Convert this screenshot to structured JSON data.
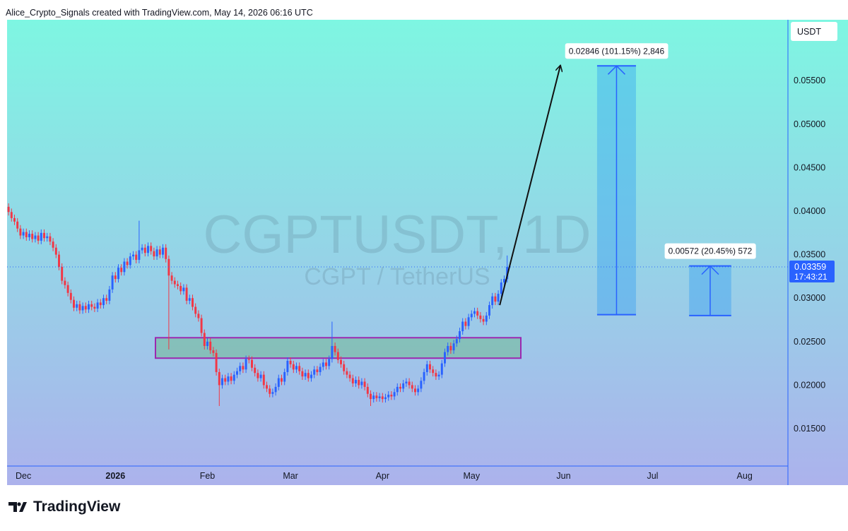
{
  "header": "Alice_Crypto_Signals created with TradingView.com, May 14, 2026 06:16 UTC",
  "footer": "TradingView",
  "chart_data": {
    "type": "candlestick",
    "title": "CGPTUSDT, 1D",
    "subtitle": "CGPT / TetherUS",
    "y_axis_label": "USDT",
    "up_color": "#2962ff",
    "down_color": "#f23645",
    "grid": false,
    "xlim": [
      -0.5,
      262.6
    ],
    "xticks": [
      {
        "value": 5,
        "label": "Dec"
      },
      {
        "value": 36,
        "label": "2026"
      },
      {
        "value": 67,
        "label": "Feb"
      },
      {
        "value": 95,
        "label": "Mar"
      },
      {
        "value": 126,
        "label": "Apr"
      },
      {
        "value": 156,
        "label": "May"
      },
      {
        "value": 187,
        "label": "Jun"
      },
      {
        "value": 217,
        "label": "Jul"
      },
      {
        "value": 248,
        "label": "Aug"
      }
    ],
    "ylim": [
      0.0107,
      0.062
    ],
    "yticks": [
      {
        "value": 0.015,
        "label": "0.01500"
      },
      {
        "value": 0.02,
        "label": "0.02000"
      },
      {
        "value": 0.025,
        "label": "0.02500"
      },
      {
        "value": 0.03,
        "label": "0.03000"
      },
      {
        "value": 0.035,
        "label": "0.03500"
      },
      {
        "value": 0.04,
        "label": "0.04000"
      },
      {
        "value": 0.045,
        "label": "0.04500"
      },
      {
        "value": 0.05,
        "label": "0.05000"
      },
      {
        "value": 0.055,
        "label": "0.05500"
      }
    ],
    "open": [
      0.0405,
      0.0399,
      0.0392,
      0.0388,
      0.038,
      0.0372,
      0.0376,
      0.037,
      0.0374,
      0.0368,
      0.0372,
      0.0366,
      0.0375,
      0.0369,
      0.0371,
      0.0365,
      0.0358,
      0.035,
      0.0336,
      0.032,
      0.0315,
      0.0306,
      0.0298,
      0.0289,
      0.0293,
      0.0286,
      0.0291,
      0.0287,
      0.0293,
      0.029,
      0.0288,
      0.0295,
      0.0292,
      0.03,
      0.0297,
      0.031,
      0.0326,
      0.0322,
      0.0335,
      0.033,
      0.0342,
      0.0338,
      0.0348,
      0.035,
      0.0344,
      0.0355,
      0.0358,
      0.0352,
      0.036,
      0.0354,
      0.0348,
      0.0356,
      0.035,
      0.0358,
      0.0345,
      0.0326,
      0.032,
      0.0316,
      0.0314,
      0.0308,
      0.0312,
      0.0297,
      0.03,
      0.029,
      0.0282,
      0.0277,
      0.026,
      0.0245,
      0.025,
      0.024,
      0.0237,
      0.0215,
      0.02,
      0.0208,
      0.0204,
      0.021,
      0.0205,
      0.0212,
      0.0216,
      0.0222,
      0.0218,
      0.023,
      0.0229,
      0.022,
      0.0214,
      0.0208,
      0.0212,
      0.02,
      0.0196,
      0.019,
      0.0192,
      0.0198,
      0.0208,
      0.0204,
      0.0215,
      0.0228,
      0.0224,
      0.0218,
      0.0222,
      0.0216,
      0.021,
      0.0214,
      0.0208,
      0.0212,
      0.0218,
      0.0215,
      0.0221,
      0.0226,
      0.0222,
      0.023,
      0.0245,
      0.0238,
      0.0229,
      0.0224,
      0.0216,
      0.0212,
      0.0208,
      0.0202,
      0.0206,
      0.02,
      0.0204,
      0.0198,
      0.019,
      0.0184,
      0.0188,
      0.0185,
      0.0187,
      0.0184,
      0.0186,
      0.0189,
      0.0187,
      0.0192,
      0.0198,
      0.0196,
      0.0202,
      0.0204,
      0.02,
      0.0196,
      0.0192,
      0.0196,
      0.0205,
      0.0215,
      0.0224,
      0.0218,
      0.0214,
      0.021,
      0.0212,
      0.0225,
      0.0238,
      0.0245,
      0.024,
      0.0248,
      0.0253,
      0.0262,
      0.0273,
      0.0268,
      0.0278,
      0.0282,
      0.0285,
      0.028,
      0.0276,
      0.0273,
      0.028,
      0.0292,
      0.0302,
      0.0296,
      0.0305,
      0.0318,
      0.0322
    ],
    "high": [
      0.0409,
      0.0403,
      0.0396,
      0.0392,
      0.0384,
      0.038,
      0.038,
      0.0378,
      0.0378,
      0.0376,
      0.0376,
      0.0379,
      0.0379,
      0.0375,
      0.0375,
      0.0369,
      0.0362,
      0.0354,
      0.034,
      0.0324,
      0.0319,
      0.031,
      0.0302,
      0.0297,
      0.0297,
      0.0295,
      0.0295,
      0.0297,
      0.0297,
      0.0294,
      0.0299,
      0.0299,
      0.0304,
      0.0304,
      0.0314,
      0.033,
      0.033,
      0.0339,
      0.0339,
      0.0346,
      0.0346,
      0.0352,
      0.0354,
      0.0354,
      0.0389,
      0.0362,
      0.0362,
      0.0364,
      0.0364,
      0.0358,
      0.036,
      0.036,
      0.0362,
      0.0362,
      0.0349,
      0.033,
      0.0324,
      0.032,
      0.0318,
      0.0316,
      0.0316,
      0.0304,
      0.0304,
      0.0294,
      0.0286,
      0.0281,
      0.0264,
      0.0254,
      0.0254,
      0.0244,
      0.0241,
      0.0219,
      0.0212,
      0.0212,
      0.0214,
      0.0214,
      0.0216,
      0.022,
      0.0226,
      0.0226,
      0.0234,
      0.0234,
      0.0233,
      0.0224,
      0.0218,
      0.0216,
      0.0216,
      0.0204,
      0.02,
      0.0196,
      0.0202,
      0.0212,
      0.0212,
      0.0219,
      0.0232,
      0.0232,
      0.0228,
      0.0226,
      0.0226,
      0.022,
      0.0218,
      0.0218,
      0.0216,
      0.0222,
      0.0222,
      0.0225,
      0.023,
      0.023,
      0.0234,
      0.0273,
      0.0249,
      0.0242,
      0.0233,
      0.0228,
      0.022,
      0.0216,
      0.0212,
      0.021,
      0.021,
      0.0208,
      0.0208,
      0.0202,
      0.0194,
      0.0192,
      0.0192,
      0.0191,
      0.0191,
      0.019,
      0.0193,
      0.0193,
      0.0196,
      0.0202,
      0.0202,
      0.0206,
      0.0208,
      0.0208,
      0.0204,
      0.02,
      0.02,
      0.0209,
      0.0219,
      0.0228,
      0.0228,
      0.0222,
      0.0218,
      0.0216,
      0.0229,
      0.0242,
      0.0249,
      0.0249,
      0.0252,
      0.0257,
      0.0266,
      0.0277,
      0.0277,
      0.0282,
      0.0286,
      0.0289,
      0.0289,
      0.0284,
      0.028,
      0.0284,
      0.0296,
      0.0306,
      0.0306,
      0.0309,
      0.0322,
      0.0326,
      0.0349
    ],
    "low": [
      0.0395,
      0.0388,
      0.0384,
      0.0376,
      0.0368,
      0.0368,
      0.0366,
      0.0366,
      0.0364,
      0.0364,
      0.0362,
      0.0362,
      0.0365,
      0.0365,
      0.0361,
      0.0354,
      0.0346,
      0.0332,
      0.0316,
      0.0311,
      0.0302,
      0.0294,
      0.0285,
      0.0285,
      0.0282,
      0.0282,
      0.0283,
      0.0283,
      0.0286,
      0.0284,
      0.0284,
      0.0288,
      0.0288,
      0.0293,
      0.0293,
      0.0306,
      0.0318,
      0.0318,
      0.0326,
      0.0326,
      0.0334,
      0.0334,
      0.0344,
      0.034,
      0.034,
      0.0351,
      0.0348,
      0.0348,
      0.035,
      0.0344,
      0.0344,
      0.0346,
      0.0346,
      0.0341,
      0.0241,
      0.0316,
      0.0312,
      0.031,
      0.0304,
      0.0304,
      0.0293,
      0.0293,
      0.0286,
      0.0278,
      0.0273,
      0.0256,
      0.0241,
      0.0241,
      0.0236,
      0.0233,
      0.0211,
      0.0176,
      0.0196,
      0.02,
      0.02,
      0.0201,
      0.0201,
      0.0208,
      0.0212,
      0.0214,
      0.0214,
      0.0225,
      0.0216,
      0.021,
      0.0204,
      0.0204,
      0.0196,
      0.0192,
      0.0186,
      0.0186,
      0.0188,
      0.0194,
      0.02,
      0.02,
      0.0211,
      0.022,
      0.0214,
      0.0214,
      0.0212,
      0.0206,
      0.0206,
      0.0204,
      0.0204,
      0.0208,
      0.0211,
      0.0211,
      0.0217,
      0.0218,
      0.0218,
      0.0226,
      0.0234,
      0.0225,
      0.022,
      0.0212,
      0.0208,
      0.0204,
      0.0198,
      0.0198,
      0.0196,
      0.0196,
      0.0194,
      0.0186,
      0.0176,
      0.018,
      0.0181,
      0.0181,
      0.018,
      0.018,
      0.0182,
      0.0183,
      0.0183,
      0.0188,
      0.0192,
      0.0192,
      0.0198,
      0.0196,
      0.0192,
      0.0188,
      0.0188,
      0.0192,
      0.0201,
      0.0211,
      0.0214,
      0.021,
      0.0206,
      0.0206,
      0.0208,
      0.0221,
      0.0234,
      0.0236,
      0.0236,
      0.0244,
      0.0249,
      0.0258,
      0.0264,
      0.0264,
      0.0274,
      0.0278,
      0.0276,
      0.0272,
      0.0269,
      0.0269,
      0.0276,
      0.0288,
      0.0292,
      0.0292,
      0.0301,
      0.0314,
      0.0318
    ],
    "close": [
      0.0399,
      0.0392,
      0.0388,
      0.038,
      0.0372,
      0.0376,
      0.037,
      0.0374,
      0.0368,
      0.0372,
      0.0366,
      0.0375,
      0.0369,
      0.0371,
      0.0365,
      0.0358,
      0.035,
      0.0336,
      0.032,
      0.0315,
      0.0306,
      0.0298,
      0.0289,
      0.0293,
      0.0286,
      0.0291,
      0.0287,
      0.0293,
      0.029,
      0.0288,
      0.0295,
      0.0292,
      0.03,
      0.0297,
      0.031,
      0.0326,
      0.0322,
      0.0335,
      0.033,
      0.0342,
      0.0338,
      0.0348,
      0.035,
      0.0344,
      0.0355,
      0.0358,
      0.0352,
      0.036,
      0.0354,
      0.0348,
      0.0356,
      0.035,
      0.0358,
      0.0345,
      0.0326,
      0.032,
      0.0316,
      0.0314,
      0.0308,
      0.0312,
      0.0297,
      0.03,
      0.029,
      0.0282,
      0.0277,
      0.026,
      0.0245,
      0.025,
      0.024,
      0.0237,
      0.0215,
      0.02,
      0.0208,
      0.0204,
      0.021,
      0.0205,
      0.0212,
      0.0216,
      0.0222,
      0.0218,
      0.023,
      0.0229,
      0.022,
      0.0214,
      0.0208,
      0.0212,
      0.02,
      0.0196,
      0.019,
      0.0192,
      0.0198,
      0.0208,
      0.0204,
      0.0215,
      0.0228,
      0.0224,
      0.0218,
      0.0222,
      0.0216,
      0.021,
      0.0214,
      0.0208,
      0.0212,
      0.0218,
      0.0215,
      0.0221,
      0.0226,
      0.0222,
      0.023,
      0.0245,
      0.0238,
      0.0229,
      0.0224,
      0.0216,
      0.0212,
      0.0208,
      0.0202,
      0.0206,
      0.02,
      0.0204,
      0.0198,
      0.019,
      0.0184,
      0.0188,
      0.0185,
      0.0187,
      0.0184,
      0.0186,
      0.0189,
      0.0187,
      0.0192,
      0.0198,
      0.0196,
      0.0202,
      0.0204,
      0.02,
      0.0196,
      0.0192,
      0.0196,
      0.0205,
      0.0215,
      0.0224,
      0.0218,
      0.0214,
      0.021,
      0.0212,
      0.0225,
      0.0238,
      0.0245,
      0.024,
      0.0248,
      0.0253,
      0.0262,
      0.0273,
      0.0268,
      0.0278,
      0.0282,
      0.0285,
      0.028,
      0.0276,
      0.0273,
      0.028,
      0.0292,
      0.0302,
      0.0296,
      0.0305,
      0.0318,
      0.0322,
      0.03359
    ],
    "last_price_label": "0.03359",
    "countdown": "17:43:21",
    "zone": {
      "x": [
        49.5,
        172.6
      ],
      "y": [
        0.0231,
        0.02545
      ]
    },
    "measures": [
      {
        "x": [
          198.3,
          211.4
        ],
        "y": [
          0.0281,
          0.0567
        ],
        "label": "0.02846 (101.15%) 2,846"
      },
      {
        "x": [
          229.3,
          243.5
        ],
        "y": [
          0.028,
          0.0337
        ],
        "label": "0.00572 (20.45%) 572"
      }
    ],
    "arrow": {
      "x": [
        165.5,
        185.9
      ],
      "y": [
        0.0292,
        0.0567
      ]
    }
  }
}
